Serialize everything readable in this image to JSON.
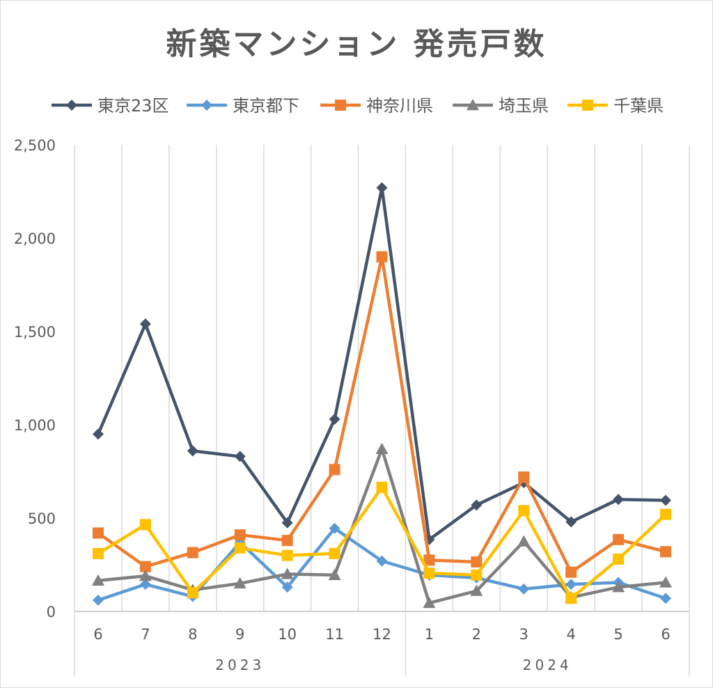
{
  "chart_data": {
    "type": "line",
    "title": "新築マンション 発売戸数",
    "xlabel": "",
    "ylabel": "",
    "categories": [
      "6",
      "7",
      "8",
      "9",
      "10",
      "11",
      "12",
      "1",
      "2",
      "3",
      "4",
      "5",
      "6"
    ],
    "year_groups": [
      {
        "label": "2023",
        "start": 0,
        "end": 6
      },
      {
        "label": "2024",
        "start": 7,
        "end": 12
      }
    ],
    "ylim": [
      0,
      2500
    ],
    "yticks": [
      0,
      500,
      1000,
      1500,
      2000,
      2500
    ],
    "ytick_labels": [
      "0",
      "500",
      "1,000",
      "1,500",
      "2,000",
      "2,500"
    ],
    "grid": "vertical",
    "legend": "top",
    "series": [
      {
        "name": "東京23区",
        "color": "#44546a",
        "marker": "diamond",
        "values": [
          950,
          1540,
          860,
          830,
          475,
          1030,
          2270,
          385,
          570,
          690,
          480,
          600,
          595
        ]
      },
      {
        "name": "東京都下",
        "color": "#5b9bd5",
        "marker": "diamond",
        "values": [
          60,
          145,
          80,
          370,
          130,
          445,
          270,
          195,
          180,
          120,
          145,
          155,
          70
        ]
      },
      {
        "name": "神奈川県",
        "color": "#ed7d31",
        "marker": "square",
        "values": [
          420,
          240,
          315,
          410,
          380,
          760,
          1900,
          275,
          265,
          720,
          210,
          385,
          320
        ]
      },
      {
        "name": "埼玉県",
        "color": "#808080",
        "marker": "triangle",
        "values": [
          165,
          190,
          115,
          150,
          200,
          195,
          870,
          45,
          110,
          375,
          75,
          130,
          155
        ]
      },
      {
        "name": "千葉県",
        "color": "#ffc000",
        "marker": "square",
        "values": [
          310,
          465,
          100,
          340,
          300,
          310,
          665,
          205,
          195,
          540,
          70,
          280,
          520
        ]
      }
    ]
  }
}
